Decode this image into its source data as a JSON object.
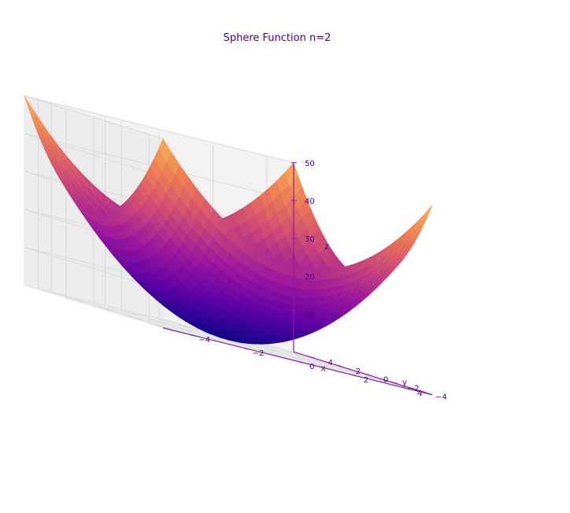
{
  "chart_data": {
    "type": "surface3d",
    "title": "Sphere Function n=2",
    "function": "z = x^2 + y^2",
    "colormap": "plasma",
    "xlabel": "x",
    "ylabel": "y",
    "zlabel": "z",
    "xlim": [
      -5,
      5
    ],
    "ylim": [
      -5,
      5
    ],
    "zlim": [
      0,
      50
    ],
    "grid": true,
    "x_ticks": [
      -4,
      -2,
      0,
      2,
      4
    ],
    "y_ticks": [
      -4,
      -2,
      0,
      2,
      4
    ],
    "z_ticks": [
      10,
      20,
      30,
      40,
      50
    ],
    "x_tick_labels": [
      "−4",
      "−2",
      "0",
      "2",
      "4"
    ],
    "y_tick_labels": [
      "−4",
      "−2",
      "0",
      "2",
      "4"
    ],
    "z_tick_labels": [
      "10",
      "20",
      "30",
      "40",
      "50"
    ],
    "colors": {
      "text": "#4b0082",
      "axis_line": "#8a1aa8",
      "pane": "#f2f2f2",
      "grid": "#d8d8d8",
      "colormap_stops": [
        "#0d0887",
        "#5c01a6",
        "#9c179e",
        "#cc4778",
        "#ed7953",
        "#f4b65a"
      ]
    }
  }
}
